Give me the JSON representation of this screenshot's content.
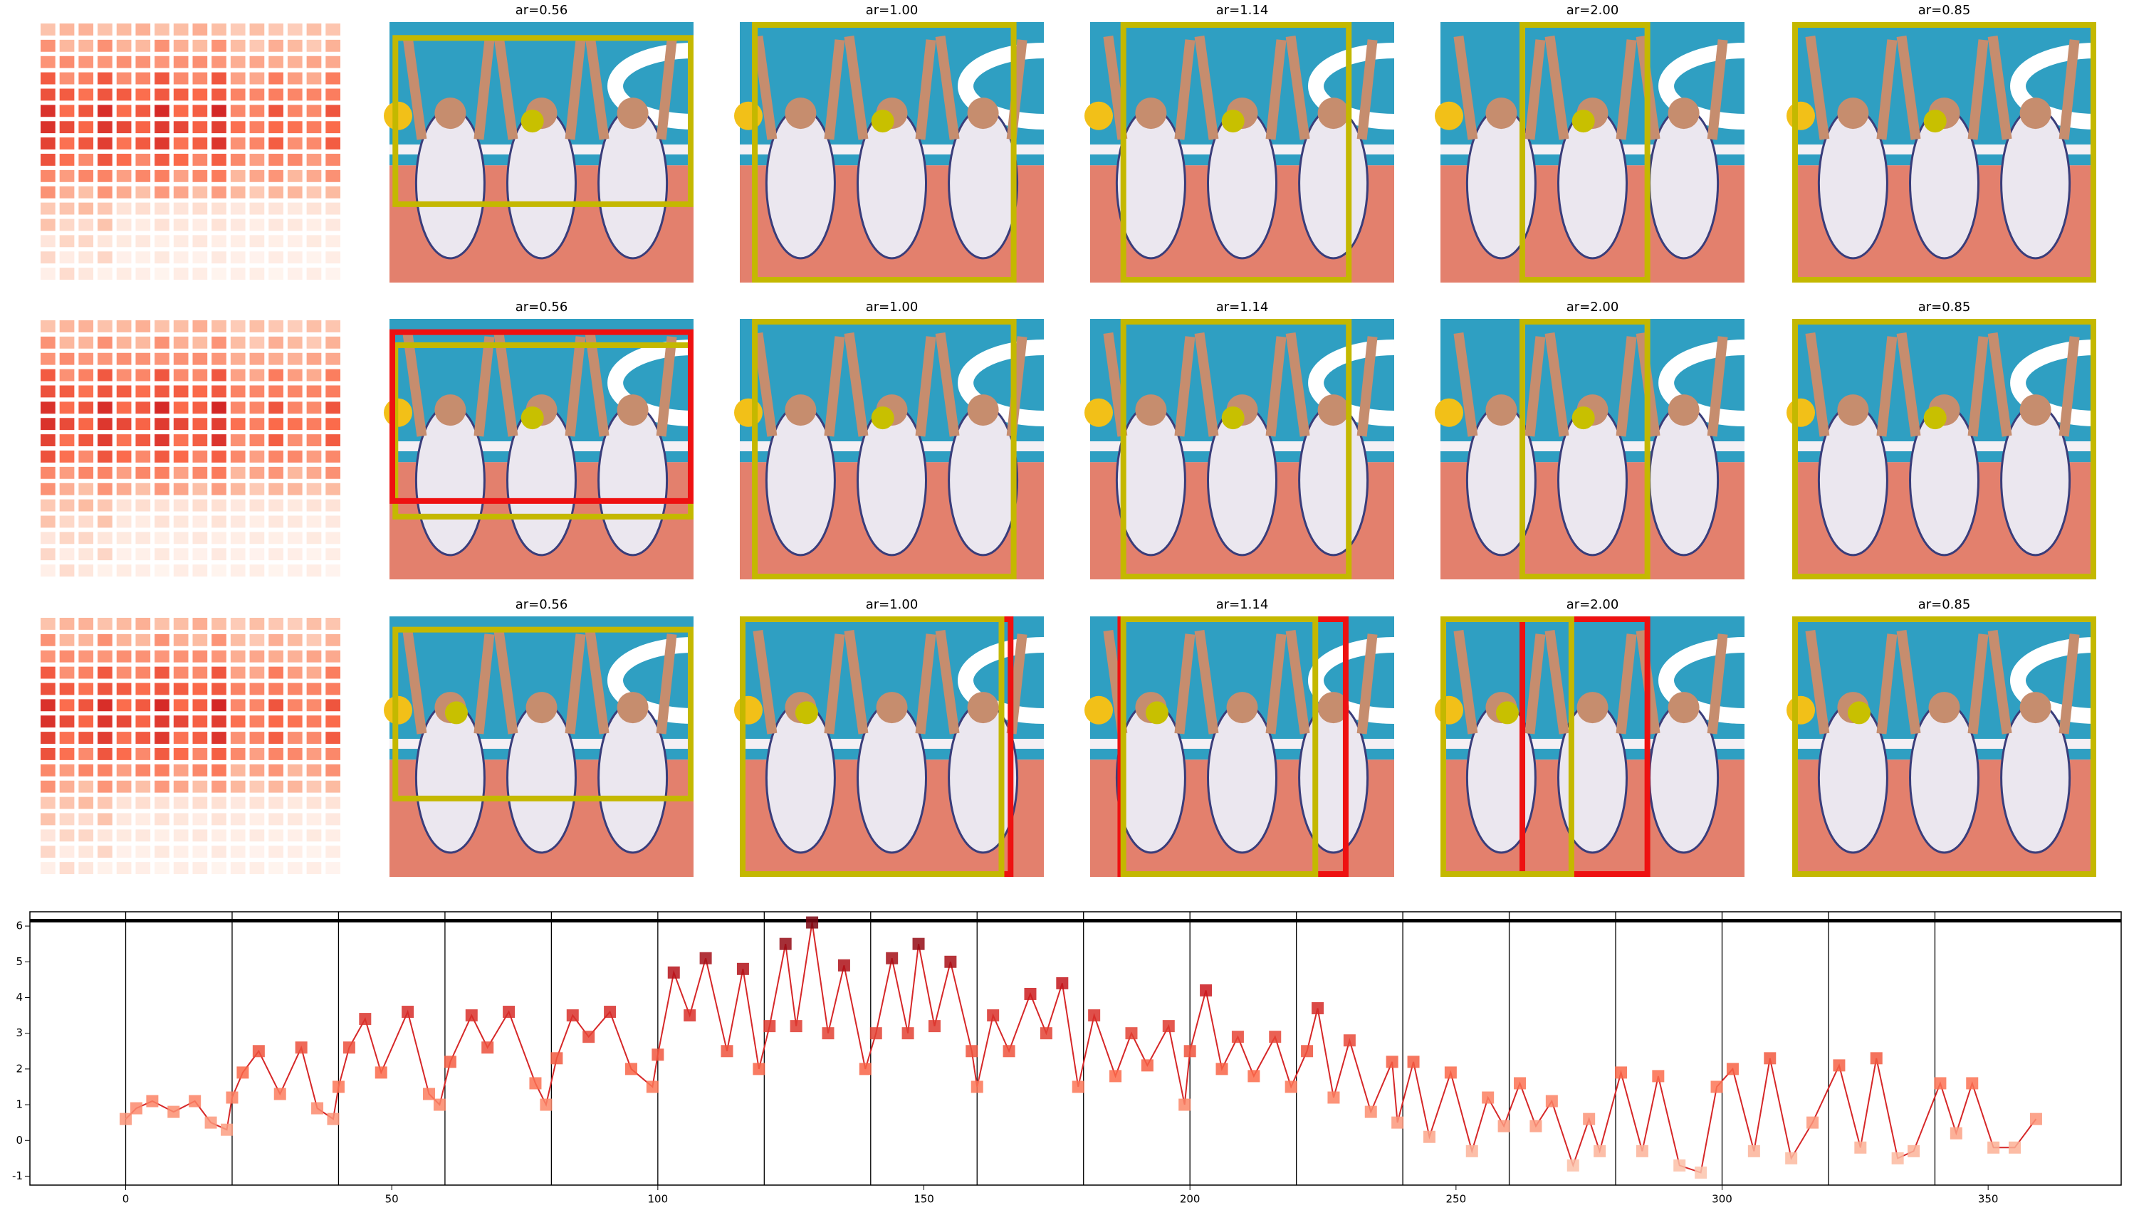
{
  "panel_titles": [
    [
      "ar=0.56",
      "ar=1.00",
      "ar=1.14",
      "ar=2.00",
      "ar=0.85"
    ],
    [
      "ar=0.56",
      "ar=1.00",
      "ar=1.14",
      "ar=2.00",
      "ar=0.85"
    ],
    [
      "ar=0.56",
      "ar=1.00",
      "ar=1.14",
      "ar=2.00",
      "ar=0.85"
    ]
  ],
  "chart_data": {
    "type": "line",
    "color": "#d62728",
    "marker": "square",
    "colormap": "Reds",
    "x": [
      0,
      2,
      5,
      9,
      13,
      16,
      19,
      20,
      22,
      25,
      29,
      33,
      36,
      39,
      40,
      42,
      45,
      48,
      53,
      57,
      59,
      61,
      65,
      68,
      72,
      77,
      79,
      81,
      84,
      87,
      91,
      95,
      99,
      100,
      103,
      106,
      109,
      113,
      116,
      119,
      121,
      124,
      126,
      129,
      132,
      135,
      139,
      141,
      144,
      147,
      149,
      152,
      155,
      159,
      160,
      163,
      166,
      170,
      173,
      176,
      179,
      182,
      186,
      189,
      192,
      196,
      199,
      200,
      203,
      206,
      209,
      212,
      216,
      219,
      222,
      224,
      227,
      230,
      234,
      238,
      239,
      242,
      245,
      249,
      253,
      256,
      259,
      262,
      265,
      268,
      272,
      275,
      277,
      281,
      285,
      288,
      292,
      296,
      299,
      302,
      306,
      309,
      313,
      317,
      322,
      326,
      329,
      333,
      336,
      341,
      344,
      347,
      351,
      355,
      359
    ],
    "values": [
      0.6,
      0.9,
      1.1,
      0.8,
      1.1,
      0.5,
      0.3,
      1.2,
      1.9,
      2.5,
      1.3,
      2.6,
      0.9,
      0.6,
      1.5,
      2.6,
      3.4,
      1.9,
      3.6,
      1.3,
      1.0,
      2.2,
      3.5,
      2.6,
      3.6,
      1.6,
      1.0,
      2.3,
      3.5,
      2.9,
      3.6,
      2.0,
      1.5,
      2.4,
      4.7,
      3.5,
      5.1,
      2.5,
      4.8,
      2.0,
      3.2,
      5.5,
      3.2,
      6.1,
      3.0,
      4.9,
      2.0,
      3.0,
      5.1,
      3.0,
      5.5,
      3.2,
      5.0,
      2.5,
      1.5,
      3.5,
      2.5,
      4.1,
      3.0,
      4.4,
      1.5,
      3.5,
      1.8,
      3.0,
      2.1,
      3.2,
      1.0,
      2.5,
      4.2,
      2.0,
      2.9,
      1.8,
      2.9,
      1.5,
      2.5,
      3.7,
      1.2,
      2.8,
      0.8,
      2.2,
      0.5,
      2.2,
      0.1,
      1.9,
      -0.3,
      1.2,
      0.4,
      1.6,
      0.4,
      1.1,
      -0.7,
      0.6,
      -0.3,
      1.9,
      -0.3,
      1.8,
      -0.7,
      -0.9,
      1.5,
      2.0,
      -0.3,
      2.3,
      -0.5,
      0.5,
      2.1,
      -0.2,
      2.3,
      -0.5,
      -0.3,
      1.6,
      0.2,
      1.6,
      -0.2,
      -0.2,
      0.6
    ],
    "xlim": [
      -18,
      375
    ],
    "ylim": [
      -1.25,
      6.4
    ],
    "xticks": [
      0,
      50,
      100,
      150,
      200,
      250,
      300,
      350
    ],
    "yticks": [
      -1,
      0,
      1,
      2,
      3,
      4,
      5,
      6
    ],
    "vlines": [
      0,
      20,
      40,
      60,
      80,
      100,
      120,
      140,
      160,
      180,
      200,
      220,
      240,
      260,
      280,
      300,
      320,
      340
    ],
    "hline": 6.15
  }
}
